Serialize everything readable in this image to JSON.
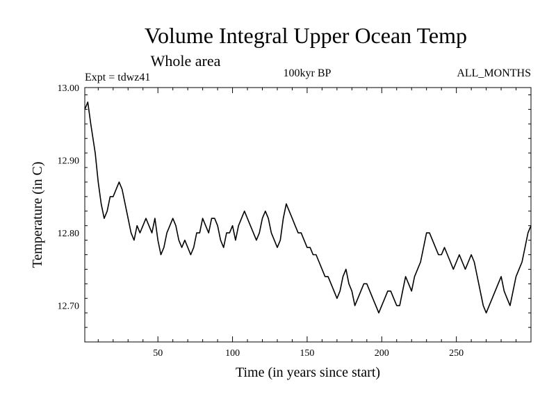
{
  "chart_data": {
    "type": "line",
    "title": "Volume Integral Upper Ocean Temp",
    "subtitle": "Whole area",
    "experiment_label": "Expt = tdwz41",
    "period_label": "100kyr BP",
    "months_label": "ALL_MONTHS",
    "xlabel": "Time (in years since start)",
    "ylabel": "Temperature (in C)",
    "xlim": [
      1,
      300
    ],
    "ylim": [
      12.65,
      13.0
    ],
    "x_ticks": [
      50,
      100,
      150,
      200,
      250
    ],
    "y_ticks": [
      12.7,
      12.8,
      12.9,
      13.0
    ],
    "x_tick_labels": [
      "50",
      "100",
      "150",
      "200",
      "250"
    ],
    "y_tick_labels": [
      "12.70",
      "12.80",
      "12.90",
      "13.00"
    ],
    "grid": false,
    "series": [
      {
        "name": "Volume integral upper ocean temperature",
        "color": "#000000",
        "x": [
          1,
          3,
          5,
          8,
          10,
          12,
          14,
          16,
          18,
          20,
          22,
          24,
          26,
          28,
          30,
          32,
          34,
          36,
          38,
          40,
          42,
          44,
          46,
          48,
          50,
          52,
          54,
          56,
          58,
          60,
          62,
          64,
          66,
          68,
          70,
          72,
          74,
          76,
          78,
          80,
          82,
          84,
          86,
          88,
          90,
          92,
          94,
          96,
          98,
          100,
          102,
          104,
          106,
          108,
          110,
          112,
          114,
          116,
          118,
          120,
          122,
          124,
          126,
          128,
          130,
          132,
          134,
          136,
          138,
          140,
          142,
          144,
          146,
          148,
          150,
          152,
          154,
          156,
          158,
          160,
          162,
          164,
          166,
          168,
          170,
          172,
          174,
          176,
          178,
          180,
          182,
          184,
          186,
          188,
          190,
          192,
          194,
          196,
          198,
          200,
          202,
          204,
          206,
          208,
          210,
          212,
          214,
          216,
          218,
          220,
          222,
          224,
          226,
          228,
          230,
          232,
          234,
          236,
          238,
          240,
          242,
          244,
          246,
          248,
          250,
          252,
          254,
          256,
          258,
          260,
          262,
          264,
          266,
          268,
          270,
          272,
          274,
          276,
          278,
          280,
          282,
          284,
          286,
          288,
          290,
          292,
          294,
          296,
          298,
          300
        ],
        "values": [
          12.97,
          12.98,
          12.95,
          12.91,
          12.87,
          12.84,
          12.82,
          12.83,
          12.85,
          12.85,
          12.86,
          12.87,
          12.86,
          12.84,
          12.82,
          12.8,
          12.79,
          12.81,
          12.8,
          12.81,
          12.82,
          12.81,
          12.8,
          12.82,
          12.79,
          12.77,
          12.78,
          12.8,
          12.81,
          12.82,
          12.81,
          12.79,
          12.78,
          12.79,
          12.78,
          12.77,
          12.78,
          12.8,
          12.8,
          12.82,
          12.81,
          12.8,
          12.82,
          12.82,
          12.81,
          12.79,
          12.78,
          12.8,
          12.8,
          12.81,
          12.79,
          12.81,
          12.82,
          12.83,
          12.82,
          12.81,
          12.8,
          12.79,
          12.8,
          12.82,
          12.83,
          12.82,
          12.8,
          12.79,
          12.78,
          12.79,
          12.82,
          12.84,
          12.83,
          12.82,
          12.81,
          12.8,
          12.8,
          12.79,
          12.78,
          12.78,
          12.77,
          12.77,
          12.76,
          12.75,
          12.74,
          12.74,
          12.73,
          12.72,
          12.71,
          12.72,
          12.74,
          12.75,
          12.73,
          12.72,
          12.7,
          12.71,
          12.72,
          12.73,
          12.73,
          12.72,
          12.71,
          12.7,
          12.69,
          12.7,
          12.71,
          12.72,
          12.72,
          12.71,
          12.7,
          12.7,
          12.72,
          12.74,
          12.73,
          12.72,
          12.74,
          12.75,
          12.76,
          12.78,
          12.8,
          12.8,
          12.79,
          12.78,
          12.77,
          12.77,
          12.78,
          12.77,
          12.76,
          12.75,
          12.76,
          12.77,
          12.76,
          12.75,
          12.76,
          12.77,
          12.76,
          12.74,
          12.72,
          12.7,
          12.69,
          12.7,
          12.71,
          12.72,
          12.73,
          12.74,
          12.72,
          12.71,
          12.7,
          12.72,
          12.74,
          12.75,
          12.76,
          12.78,
          12.8,
          12.81
        ]
      }
    ]
  }
}
